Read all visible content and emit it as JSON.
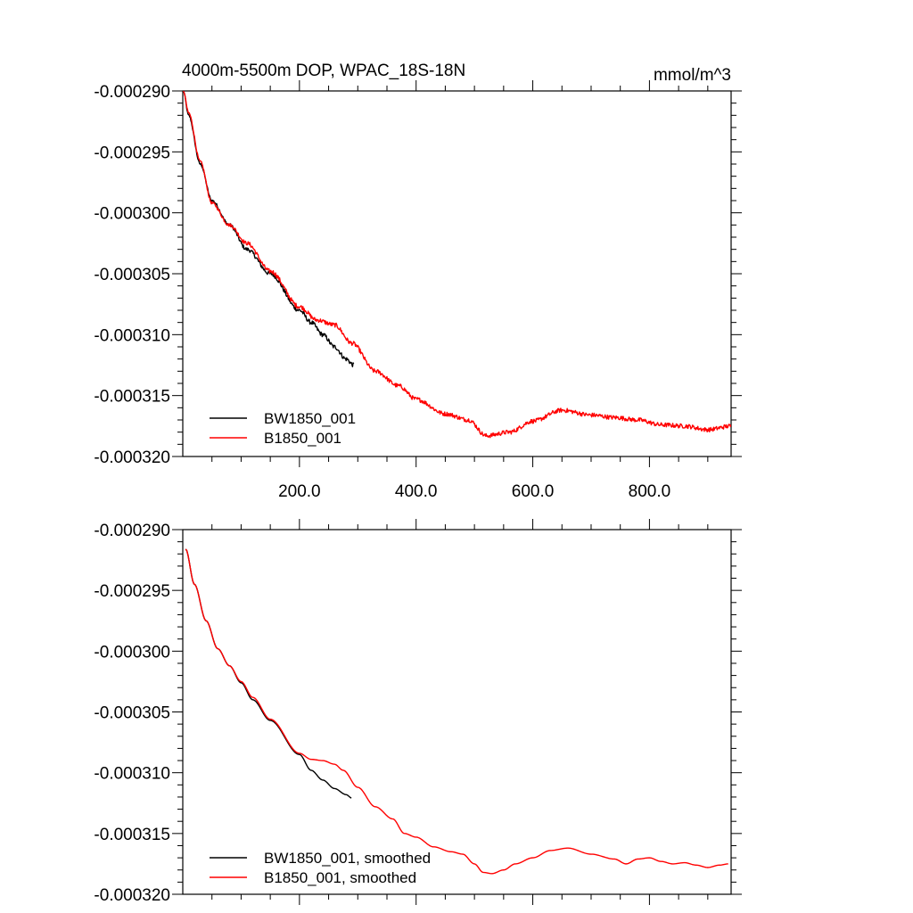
{
  "chart_data": [
    {
      "type": "line",
      "title": "4000m-5500m DOP, WPAC_18S-18N",
      "units": "mmol/m^3",
      "xlim": [
        0,
        940
      ],
      "ylim": [
        -0.00032,
        -0.00029
      ],
      "x_ticks": [
        200,
        400,
        600,
        800
      ],
      "x_tick_labels": [
        "200.0",
        "400.0",
        "600.0",
        "800.0"
      ],
      "y_ticks": [
        -0.00029,
        -0.000295,
        -0.0003,
        -0.000305,
        -0.00031,
        -0.000315,
        -0.00032
      ],
      "y_tick_labels": [
        "-0.000290",
        "-0.000295",
        "-0.000300",
        "-0.000305",
        "-0.000310",
        "-0.000315",
        "-0.000320"
      ],
      "legend_position": "bottom-left",
      "noise": 1.8e-07,
      "series": [
        {
          "name": "BW1850_001",
          "color": "#000000",
          "x": [
            1,
            10,
            30,
            50,
            80,
            110,
            150,
            200,
            220,
            240,
            260,
            280,
            293
          ],
          "y": [
            -0.00029,
            -0.000292,
            -0.000296,
            -0.000299,
            -0.000301,
            -0.000303,
            -0.000305,
            -0.000308,
            -0.000309,
            -0.00031,
            -0.000311,
            -0.000312,
            -0.0003125
          ]
        },
        {
          "name": "B1850_001",
          "color": "#ff0000",
          "x": [
            1,
            10,
            30,
            50,
            80,
            110,
            150,
            200,
            230,
            260,
            290,
            330,
            370,
            400,
            450,
            490,
            520,
            560,
            600,
            650,
            700,
            740,
            780,
            820,
            860,
            900,
            940
          ],
          "y": [
            -0.00029,
            -0.0002918,
            -0.0002958,
            -0.0002992,
            -0.000301,
            -0.0003025,
            -0.0003048,
            -0.0003077,
            -0.0003088,
            -0.0003092,
            -0.0003107,
            -0.000313,
            -0.0003142,
            -0.0003153,
            -0.0003165,
            -0.000317,
            -0.0003183,
            -0.000318,
            -0.0003171,
            -0.0003162,
            -0.0003166,
            -0.0003168,
            -0.000317,
            -0.0003174,
            -0.0003175,
            -0.0003178,
            -0.0003175
          ]
        }
      ]
    },
    {
      "type": "line",
      "title": "",
      "units": "",
      "xlim": [
        0,
        940
      ],
      "ylim": [
        -0.00032,
        -0.00029
      ],
      "x_ticks": [
        200,
        400,
        600,
        800
      ],
      "x_tick_labels": [],
      "y_ticks": [
        -0.00029,
        -0.000295,
        -0.0003,
        -0.000305,
        -0.00031,
        -0.000315,
        -0.00032
      ],
      "y_tick_labels": [
        "-0.000290",
        "-0.000295",
        "-0.000300",
        "-0.000305",
        "-0.000310",
        "-0.000315",
        "-0.000320"
      ],
      "legend_position": "bottom-left",
      "noise": 0,
      "series": [
        {
          "name": "BW1850_001, smoothed",
          "color": "#000000",
          "x": [
            5,
            20,
            40,
            60,
            80,
            100,
            120,
            150,
            200,
            220,
            240,
            260,
            280,
            290
          ],
          "y": [
            -0.0002916,
            -0.0002945,
            -0.0002975,
            -0.0002998,
            -0.0003012,
            -0.0003026,
            -0.000304,
            -0.0003057,
            -0.0003085,
            -0.0003098,
            -0.0003106,
            -0.0003113,
            -0.0003118,
            -0.0003121
          ]
        },
        {
          "name": "B1850_001, smoothed",
          "color": "#ff0000",
          "x": [
            5,
            20,
            40,
            60,
            80,
            100,
            120,
            150,
            200,
            220,
            240,
            260,
            275,
            300,
            330,
            360,
            380,
            400,
            430,
            460,
            480,
            500,
            515,
            530,
            550,
            570,
            600,
            630,
            660,
            700,
            740,
            760,
            780,
            800,
            820,
            840,
            860,
            880,
            900,
            920,
            935
          ],
          "y": [
            -0.0002916,
            -0.0002945,
            -0.0002975,
            -0.0002998,
            -0.0003012,
            -0.0003025,
            -0.0003038,
            -0.0003056,
            -0.0003084,
            -0.0003089,
            -0.000309,
            -0.0003093,
            -0.0003098,
            -0.0003112,
            -0.0003128,
            -0.0003138,
            -0.000315,
            -0.0003153,
            -0.0003161,
            -0.0003165,
            -0.0003167,
            -0.0003175,
            -0.0003182,
            -0.0003183,
            -0.000318,
            -0.0003175,
            -0.000317,
            -0.0003164,
            -0.0003162,
            -0.0003167,
            -0.0003171,
            -0.0003175,
            -0.0003171,
            -0.000317,
            -0.0003173,
            -0.0003175,
            -0.0003174,
            -0.0003176,
            -0.0003178,
            -0.0003176,
            -0.0003175
          ]
        }
      ]
    }
  ]
}
